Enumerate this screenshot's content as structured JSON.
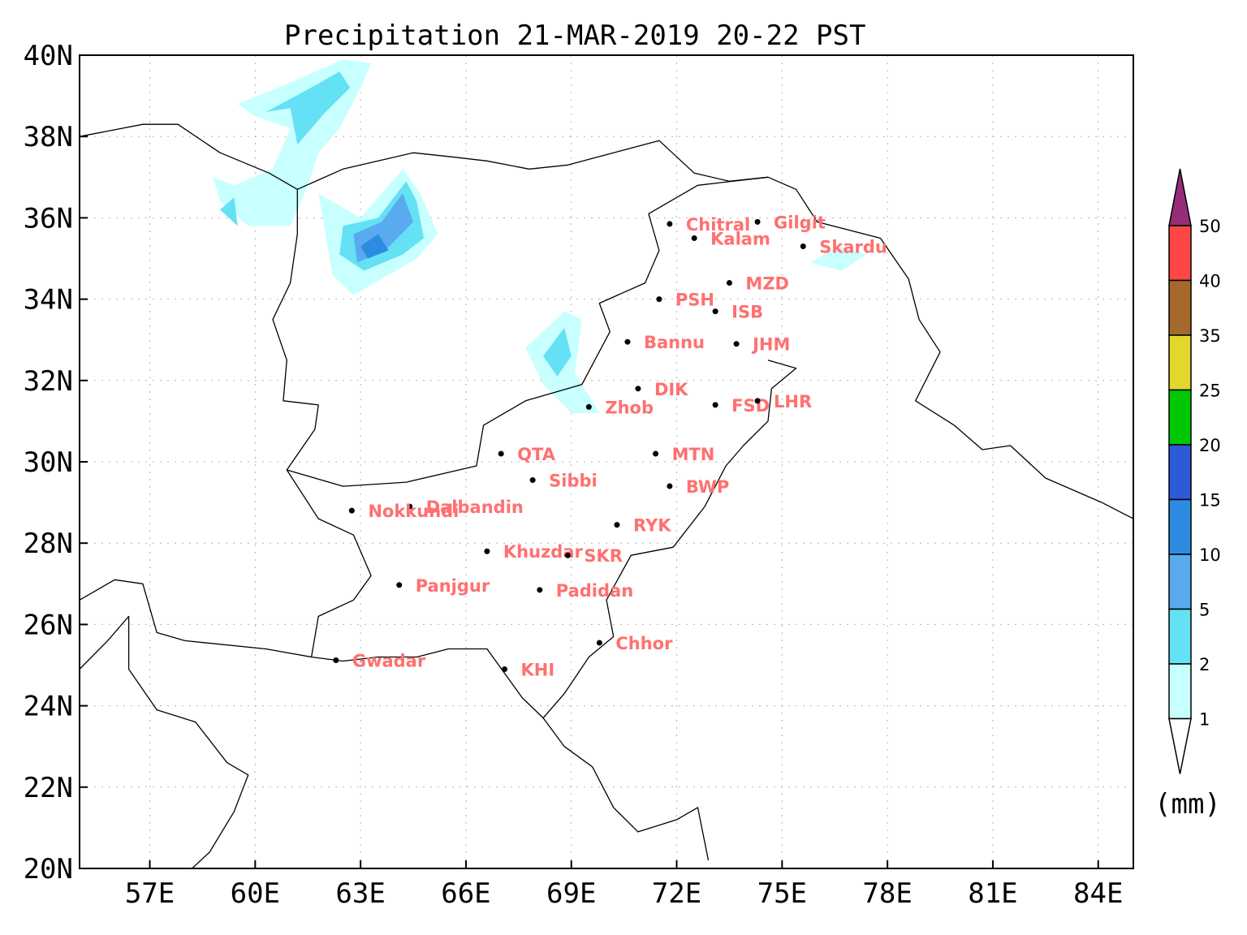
{
  "title": "Precipitation 21-MAR-2019 20-22 PST",
  "lat_ticks": [
    "40N",
    "38N",
    "36N",
    "34N",
    "32N",
    "30N",
    "28N",
    "26N",
    "24N",
    "22N",
    "20N"
  ],
  "lon_ticks": [
    "57E",
    "60E",
    "63E",
    "66E",
    "69E",
    "72E",
    "75E",
    "78E",
    "81E",
    "84E"
  ],
  "map_extent": {
    "lon_min": 55,
    "lon_max": 85,
    "lat_min": 20,
    "lat_max": 40
  },
  "cities": [
    {
      "name": "Chitral",
      "lon": 71.8,
      "lat": 35.85
    },
    {
      "name": "Gilgit",
      "lon": 74.3,
      "lat": 35.9
    },
    {
      "name": "Kalam",
      "lon": 72.5,
      "lat": 35.5
    },
    {
      "name": "Skardu",
      "lon": 75.6,
      "lat": 35.3
    },
    {
      "name": "MZD",
      "lon": 73.5,
      "lat": 34.4
    },
    {
      "name": "PSH",
      "lon": 71.5,
      "lat": 34.0
    },
    {
      "name": "ISB",
      "lon": 73.1,
      "lat": 33.7
    },
    {
      "name": "Bannu",
      "lon": 70.6,
      "lat": 32.95
    },
    {
      "name": "JHM",
      "lon": 73.7,
      "lat": 32.9
    },
    {
      "name": "DIK",
      "lon": 70.9,
      "lat": 31.8
    },
    {
      "name": "FSD",
      "lon": 73.1,
      "lat": 31.4
    },
    {
      "name": "LHR",
      "lon": 74.3,
      "lat": 31.5
    },
    {
      "name": "Zhob",
      "lon": 69.5,
      "lat": 31.35
    },
    {
      "name": "QTA",
      "lon": 67.0,
      "lat": 30.2
    },
    {
      "name": "MTN",
      "lon": 71.4,
      "lat": 30.2
    },
    {
      "name": "Sibbi",
      "lon": 67.9,
      "lat": 29.55
    },
    {
      "name": "BWP",
      "lon": 71.8,
      "lat": 29.4
    },
    {
      "name": "Dalbandin",
      "lon": 64.4,
      "lat": 28.9
    },
    {
      "name": "Nokkundi",
      "lon": 62.75,
      "lat": 28.8
    },
    {
      "name": "RYK",
      "lon": 70.3,
      "lat": 28.45
    },
    {
      "name": "Khuzdar",
      "lon": 66.6,
      "lat": 27.8
    },
    {
      "name": "SKR",
      "lon": 68.9,
      "lat": 27.7
    },
    {
      "name": "Panjgur",
      "lon": 64.1,
      "lat": 26.97
    },
    {
      "name": "Padidan",
      "lon": 68.1,
      "lat": 26.85
    },
    {
      "name": "Chhor",
      "lon": 69.8,
      "lat": 25.55
    },
    {
      "name": "Gwadar",
      "lon": 62.3,
      "lat": 25.12
    },
    {
      "name": "KHI",
      "lon": 67.1,
      "lat": 24.9
    }
  ],
  "colorbar": {
    "levels": [
      "1",
      "2",
      "5",
      "10",
      "15",
      "20",
      "25",
      "35",
      "40",
      "50"
    ],
    "colors": [
      "#c8ffff",
      "#64e1f5",
      "#5aaaf0",
      "#2d8ce1",
      "#2d5ad7",
      "#00c800",
      "#e1d72d",
      "#a5692d",
      "#ff4646"
    ],
    "under_color": "#ffffff",
    "over_color": "#962d78",
    "unit": "(mm)"
  },
  "precip_regions": [
    {
      "level_index": 0,
      "shape": [
        [
          59.5,
          38.8
        ],
        [
          61.2,
          39.4
        ],
        [
          62.5,
          39.9
        ],
        [
          63.3,
          39.8
        ],
        [
          63.0,
          39.2
        ],
        [
          62.4,
          38.2
        ],
        [
          61.8,
          37.6
        ],
        [
          61.5,
          36.8
        ],
        [
          61.0,
          35.8
        ],
        [
          59.8,
          35.8
        ],
        [
          59.0,
          36.4
        ],
        [
          58.8,
          37.0
        ],
        [
          59.4,
          36.8
        ],
        [
          60.5,
          37.2
        ],
        [
          61.0,
          38.2
        ],
        [
          60.0,
          38.5
        ]
      ]
    },
    {
      "level_index": 0,
      "shape": [
        [
          61.8,
          36.6
        ],
        [
          63.0,
          36.0
        ],
        [
          64.2,
          37.2
        ],
        [
          64.7,
          36.6
        ],
        [
          65.2,
          35.6
        ],
        [
          64.6,
          35.0
        ],
        [
          63.6,
          34.5
        ],
        [
          62.8,
          34.1
        ],
        [
          62.2,
          34.6
        ],
        [
          62.0,
          35.6
        ]
      ]
    },
    {
      "level_index": 0,
      "shape": [
        [
          67.7,
          32.8
        ],
        [
          68.8,
          33.7
        ],
        [
          69.3,
          33.5
        ],
        [
          69.1,
          32.2
        ],
        [
          69.8,
          31.2
        ],
        [
          69.0,
          31.2
        ],
        [
          68.2,
          31.9
        ]
      ]
    },
    {
      "level_index": 0,
      "shape": [
        [
          75.8,
          34.9
        ],
        [
          76.6,
          35.3
        ],
        [
          77.4,
          35.1
        ],
        [
          76.7,
          34.7
        ]
      ]
    },
    {
      "level_index": 1,
      "shape": [
        [
          60.3,
          38.6
        ],
        [
          61.8,
          39.3
        ],
        [
          62.4,
          39.6
        ],
        [
          62.7,
          39.2
        ],
        [
          62.0,
          38.6
        ],
        [
          61.2,
          37.8
        ],
        [
          61.0,
          38.7
        ]
      ]
    },
    {
      "level_index": 1,
      "shape": [
        [
          62.5,
          35.8
        ],
        [
          63.5,
          36.0
        ],
        [
          64.3,
          36.9
        ],
        [
          64.6,
          36.4
        ],
        [
          64.8,
          35.5
        ],
        [
          64.2,
          35.1
        ],
        [
          63.1,
          34.7
        ],
        [
          62.4,
          35.1
        ]
      ]
    },
    {
      "level_index": 1,
      "shape": [
        [
          68.2,
          32.6
        ],
        [
          68.8,
          33.3
        ],
        [
          69.0,
          32.6
        ],
        [
          68.6,
          32.1
        ]
      ]
    },
    {
      "level_index": 1,
      "shape": [
        [
          59.0,
          36.2
        ],
        [
          59.5,
          35.8
        ],
        [
          59.4,
          36.5
        ]
      ]
    },
    {
      "level_index": 2,
      "shape": [
        [
          62.8,
          35.6
        ],
        [
          63.6,
          35.9
        ],
        [
          64.2,
          36.6
        ],
        [
          64.5,
          35.9
        ],
        [
          63.7,
          35.2
        ],
        [
          62.9,
          34.9
        ]
      ]
    },
    {
      "level_index": 3,
      "shape": [
        [
          63.0,
          35.3
        ],
        [
          63.5,
          35.6
        ],
        [
          63.8,
          35.2
        ],
        [
          63.2,
          35.0
        ]
      ]
    }
  ],
  "borders": [
    {
      "kind": "country",
      "pts": [
        [
          55,
          38.0
        ],
        [
          56.8,
          38.3
        ],
        [
          57.8,
          38.3
        ],
        [
          59.0,
          37.6
        ],
        [
          60.4,
          37.1
        ],
        [
          61.2,
          36.7
        ],
        [
          61.2,
          35.6
        ],
        [
          61.0,
          34.4
        ],
        [
          60.5,
          33.5
        ],
        [
          60.9,
          32.5
        ],
        [
          60.8,
          31.5
        ],
        [
          61.8,
          31.4
        ],
        [
          61.7,
          30.8
        ],
        [
          60.9,
          29.8
        ],
        [
          61.8,
          28.6
        ],
        [
          62.8,
          28.2
        ],
        [
          63.3,
          27.2
        ],
        [
          62.8,
          26.6
        ],
        [
          61.8,
          26.2
        ],
        [
          61.6,
          25.2
        ],
        [
          60.3,
          25.4
        ],
        [
          58.0,
          25.6
        ],
        [
          57.2,
          25.8
        ],
        [
          56.8,
          27.0
        ],
        [
          56.0,
          27.1
        ],
        [
          55,
          26.6
        ]
      ]
    },
    {
      "kind": "country",
      "pts": [
        [
          60.9,
          29.8
        ],
        [
          62.5,
          29.4
        ],
        [
          64.3,
          29.5
        ],
        [
          66.3,
          29.9
        ],
        [
          66.5,
          30.9
        ],
        [
          67.7,
          31.5
        ],
        [
          69.3,
          31.9
        ],
        [
          70.1,
          33.2
        ],
        [
          69.8,
          33.9
        ],
        [
          71.1,
          34.4
        ],
        [
          71.5,
          35.2
        ],
        [
          71.2,
          36.1
        ],
        [
          72.6,
          36.8
        ],
        [
          74.6,
          37.0
        ],
        [
          75.4,
          36.7
        ],
        [
          76.0,
          35.9
        ],
        [
          77.8,
          35.5
        ]
      ]
    },
    {
      "kind": "country",
      "pts": [
        [
          61.2,
          36.7
        ],
        [
          62.5,
          37.2
        ],
        [
          64.5,
          37.6
        ],
        [
          65.6,
          37.5
        ],
        [
          66.6,
          37.4
        ],
        [
          67.8,
          37.2
        ],
        [
          68.9,
          37.3
        ],
        [
          70.2,
          37.6
        ],
        [
          71.5,
          37.9
        ],
        [
          72.5,
          37.1
        ],
        [
          73.5,
          36.9
        ],
        [
          74.6,
          37.0
        ]
      ]
    },
    {
      "kind": "country",
      "pts": [
        [
          77.8,
          35.5
        ],
        [
          78.6,
          34.5
        ],
        [
          78.9,
          33.5
        ],
        [
          79.5,
          32.7
        ],
        [
          78.8,
          31.5
        ],
        [
          79.9,
          30.9
        ],
        [
          80.7,
          30.3
        ],
        [
          81.5,
          30.4
        ],
        [
          82.5,
          29.6
        ],
        [
          84.1,
          29.0
        ],
        [
          85,
          28.6
        ]
      ]
    },
    {
      "kind": "country",
      "pts": [
        [
          74.6,
          32.5
        ],
        [
          75.4,
          32.3
        ],
        [
          74.7,
          31.8
        ],
        [
          74.6,
          31.0
        ],
        [
          73.9,
          30.4
        ],
        [
          73.4,
          29.9
        ],
        [
          72.8,
          28.9
        ],
        [
          71.9,
          27.9
        ],
        [
          70.7,
          27.7
        ],
        [
          70.0,
          26.6
        ],
        [
          70.2,
          25.7
        ],
        [
          69.5,
          25.2
        ],
        [
          68.8,
          24.3
        ],
        [
          68.2,
          23.7
        ]
      ]
    },
    {
      "kind": "coast",
      "pts": [
        [
          61.6,
          25.2
        ],
        [
          62.5,
          25.1
        ],
        [
          63.5,
          25.2
        ],
        [
          64.6,
          25.2
        ],
        [
          65.5,
          25.4
        ],
        [
          66.6,
          25.4
        ],
        [
          67.1,
          24.8
        ],
        [
          67.6,
          24.2
        ],
        [
          68.2,
          23.7
        ],
        [
          68.8,
          23.0
        ],
        [
          69.6,
          22.5
        ],
        [
          70.2,
          21.5
        ],
        [
          70.9,
          20.9
        ],
        [
          72.0,
          21.2
        ],
        [
          72.6,
          21.5
        ],
        [
          72.9,
          20.2
        ]
      ]
    },
    {
      "kind": "coast",
      "pts": [
        [
          55,
          24.9
        ],
        [
          55.8,
          25.6
        ],
        [
          56.4,
          26.2
        ],
        [
          56.4,
          24.9
        ],
        [
          57.2,
          23.9
        ],
        [
          58.3,
          23.6
        ],
        [
          59.2,
          22.6
        ],
        [
          59.8,
          22.3
        ],
        [
          59.4,
          21.4
        ],
        [
          58.7,
          20.4
        ],
        [
          58.2,
          20.0
        ]
      ]
    }
  ]
}
